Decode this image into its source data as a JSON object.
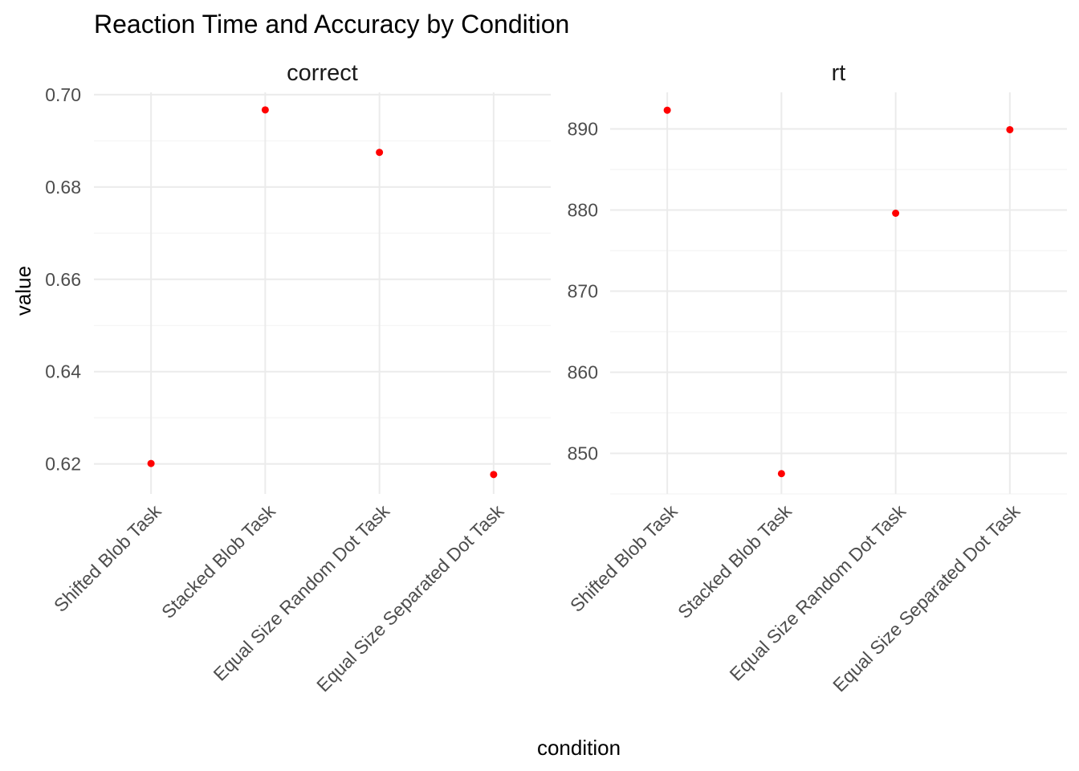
{
  "chart_data": {
    "type": "scatter",
    "title": "Reaction Time and Accuracy by Condition",
    "xlabel": "condition",
    "ylabel": "value",
    "categories": [
      "Shifted Blob Task",
      "Stacked Blob Task",
      "Equal Size Random Dot Task",
      "Equal Size Separated Dot Task"
    ],
    "point_color": "#ff0000",
    "grid": true,
    "legend": "none",
    "facets": [
      {
        "label": "correct",
        "ylim": [
          0.6135,
          0.7005
        ],
        "yticks": [
          0.62,
          0.64,
          0.66,
          0.68,
          0.7
        ],
        "ytick_labels": [
          "0.62",
          "0.64",
          "0.66",
          "0.68",
          "0.70"
        ],
        "values": [
          0.6201,
          0.6967,
          0.6875,
          0.6177
        ]
      },
      {
        "label": "rt",
        "ylim": [
          845,
          894.5
        ],
        "yticks": [
          850,
          860,
          870,
          880,
          890
        ],
        "ytick_labels": [
          "850",
          "860",
          "870",
          "880",
          "890"
        ],
        "values": [
          892.3,
          847.5,
          879.6,
          889.9
        ]
      }
    ]
  }
}
